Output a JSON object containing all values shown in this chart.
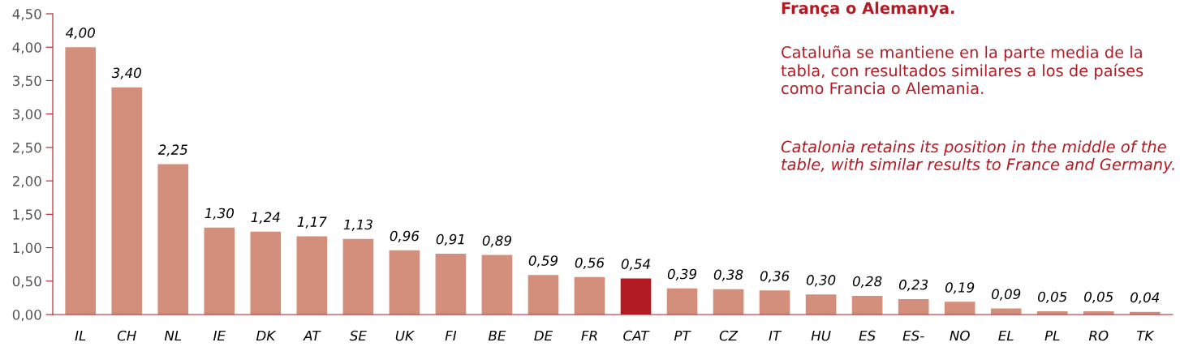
{
  "chart_data": {
    "type": "bar",
    "categories": [
      "IL",
      "CH",
      "NL",
      "IE",
      "DK",
      "AT",
      "SE",
      "UK",
      "FI",
      "BE",
      "DE",
      "FR",
      "CAT",
      "PT",
      "CZ",
      "IT",
      "HU",
      "ES",
      "ES-",
      "NO",
      "EL",
      "PL",
      "RO",
      "TK"
    ],
    "values": [
      4.0,
      3.4,
      2.25,
      1.3,
      1.24,
      1.17,
      1.13,
      0.96,
      0.91,
      0.89,
      0.59,
      0.56,
      0.54,
      0.39,
      0.38,
      0.36,
      0.3,
      0.28,
      0.23,
      0.19,
      0.09,
      0.05,
      0.05,
      0.04
    ],
    "colors": [
      "#d48f7c",
      "#d48f7c",
      "#d48f7c",
      "#d48f7c",
      "#d48f7c",
      "#d48f7c",
      "#d48f7c",
      "#d48f7c",
      "#d48f7c",
      "#d48f7c",
      "#d48f7c",
      "#d48f7c",
      "#b31b24",
      "#d48f7c",
      "#d48f7c",
      "#d48f7c",
      "#d48f7c",
      "#d48f7c",
      "#d48f7c",
      "#d48f7c",
      "#d48f7c",
      "#d48f7c",
      "#d48f7c",
      "#d48f7c"
    ],
    "value_labels": [
      "4,00",
      "3,40",
      "2,25",
      "1,30",
      "1,24",
      "1,17",
      "1,13",
      "0,96",
      "0,91",
      "0,89",
      "0,59",
      "0,56",
      "0,54",
      "0,39",
      "0,38",
      "0,36",
      "0,30",
      "0,28",
      "0,23",
      "0,19",
      "0,09",
      "0,05",
      "0,05",
      "0,04"
    ],
    "ylim": [
      0,
      4.5
    ],
    "yticks": [
      {
        "value": 0,
        "label": "0,00"
      },
      {
        "value": 0.5,
        "label": "0,50"
      },
      {
        "value": 1,
        "label": "1,00"
      },
      {
        "value": 1.5,
        "label": "1,50"
      },
      {
        "value": 2,
        "label": "2,00"
      },
      {
        "value": 2.5,
        "label": "2,50"
      },
      {
        "value": 3,
        "label": "3,00"
      },
      {
        "value": 3.5,
        "label": "3,50"
      },
      {
        "value": 4,
        "label": "4,00"
      },
      {
        "value": 4.5,
        "label": "4,50"
      }
    ],
    "grid": false,
    "legend": false,
    "annotations": [
      "França o Alemanya.",
      "Cataluña se mantiene en la parte media de la tabla, con resultados similares a los de países como Francia o Alemania.",
      "Catalonia retains its position in the middle of the table, with similar results to France and Germany."
    ]
  }
}
